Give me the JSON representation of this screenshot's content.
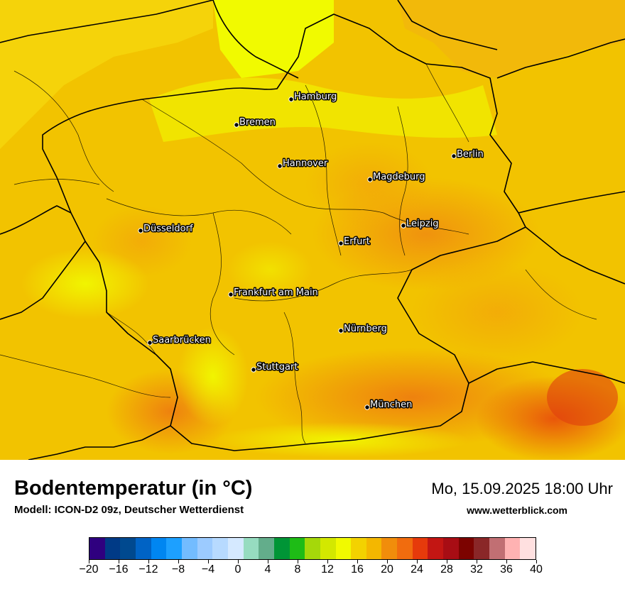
{
  "header": {
    "title": "Bodentemperatur (in °C)",
    "subtitle": "Modell: ICON-D2 09z, Deutscher Wetterdienst",
    "datetime": "Mo, 15.09.2025 18:00 Uhr",
    "website": "www.wetterblick.com"
  },
  "map": {
    "cities": [
      {
        "name": "Hamburg"
      },
      {
        "name": "Bremen"
      },
      {
        "name": "Hannover"
      },
      {
        "name": "Berlin"
      },
      {
        "name": "Magdeburg"
      },
      {
        "name": "Düsseldorf"
      },
      {
        "name": "Leipzig"
      },
      {
        "name": "Erfurt"
      },
      {
        "name": "Frankfurt am Main"
      },
      {
        "name": "Nürnberg"
      },
      {
        "name": "Saarbrücken"
      },
      {
        "name": "Stuttgart"
      },
      {
        "name": "München"
      }
    ]
  },
  "legend": {
    "colors": [
      "#2f007f",
      "#003a86",
      "#00498f",
      "#0063c5",
      "#0086f1",
      "#1da0ff",
      "#73bcff",
      "#9ccbff",
      "#b7daff",
      "#d5e9ff",
      "#96dcc0",
      "#63ad8b",
      "#009536",
      "#1ebc16",
      "#a5d80a",
      "#d3e800",
      "#f1fa00",
      "#f3d200",
      "#f4b700",
      "#f18d0b",
      "#f16c0e",
      "#e63a0b",
      "#c31613",
      "#a80d14",
      "#7c0300",
      "#8a2728",
      "#c16f73",
      "#ffb2b2",
      "#ffe0e0"
    ],
    "tick_labels": [
      "−20",
      "−16",
      "−12",
      "−8",
      "−4",
      "0",
      "4",
      "8",
      "12",
      "16",
      "20",
      "24",
      "28",
      "32",
      "36",
      "40"
    ]
  }
}
